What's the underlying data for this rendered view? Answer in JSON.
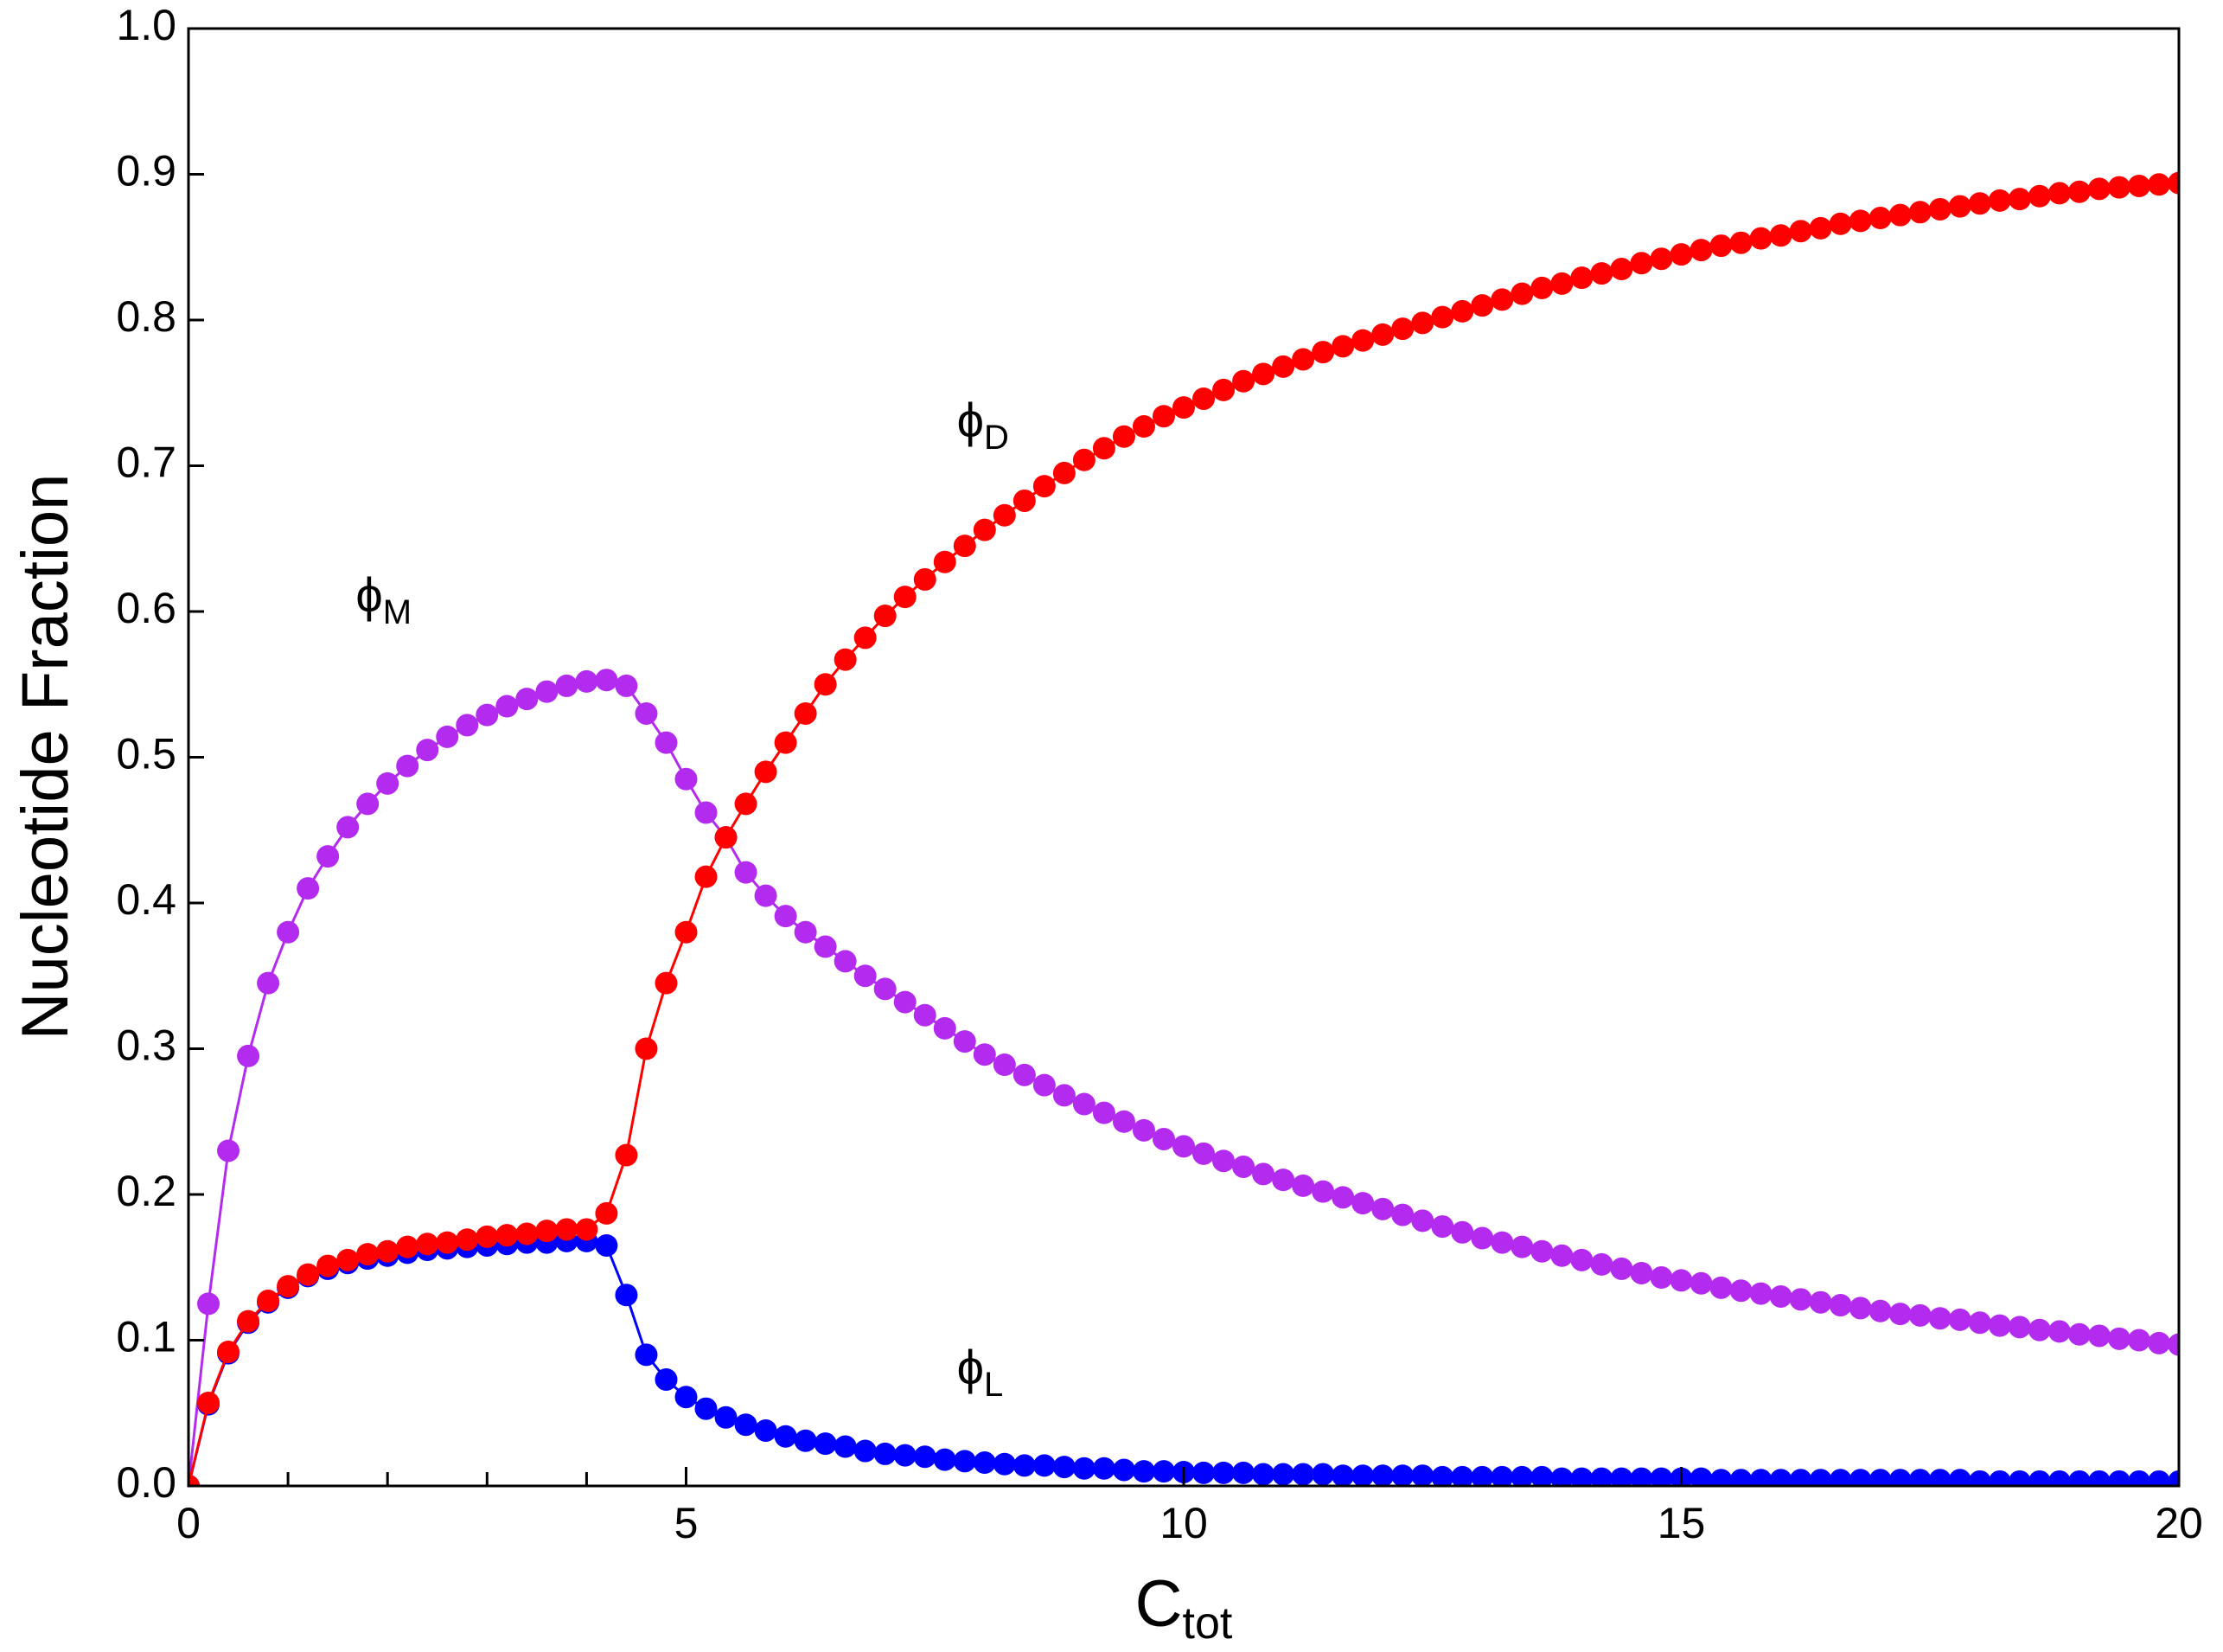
{
  "chart_data": {
    "type": "scatter",
    "ylabel": "Nucleotide Fraction",
    "xlabel": {
      "text": "C",
      "subscript": "tot"
    },
    "xlim": [
      0,
      20
    ],
    "ylim": [
      0,
      1
    ],
    "xticks": [
      0,
      5,
      10,
      15,
      20
    ],
    "xminorticks": [
      1,
      2,
      3,
      4
    ],
    "yticks": [
      {
        "value": 0,
        "label": "0.0"
      },
      0.1,
      0.2,
      0.3,
      0.4,
      0.5,
      0.6,
      0.7,
      0.8,
      0.9,
      {
        "value": 1,
        "label": "1.0"
      }
    ],
    "line": true,
    "x": [
      0,
      0.2,
      0.4,
      0.6,
      0.8,
      1,
      1.2,
      1.4,
      1.6,
      1.8,
      2,
      2.2,
      2.4,
      2.6,
      2.8,
      3,
      3.2,
      3.4,
      3.6,
      3.8,
      4,
      4.2,
      4.4,
      4.6,
      4.8,
      5,
      5.2,
      5.4,
      5.6,
      5.8,
      6,
      6.2,
      6.4,
      6.6,
      6.8,
      7,
      7.2,
      7.4,
      7.6,
      7.8,
      8,
      8.2,
      8.4,
      8.6,
      8.8,
      9,
      9.2,
      9.4,
      9.6,
      9.8,
      10,
      10.2,
      10.4,
      10.6,
      10.8,
      11,
      11.2,
      11.4,
      11.6,
      11.8,
      12,
      12.2,
      12.4,
      12.6,
      12.8,
      13,
      13.2,
      13.4,
      13.6,
      13.8,
      14,
      14.2,
      14.4,
      14.6,
      14.8,
      15,
      15.2,
      15.4,
      15.6,
      15.8,
      16,
      16.2,
      16.4,
      16.6,
      16.8,
      17,
      17.2,
      17.4,
      17.6,
      17.8,
      18,
      18.2,
      18.4,
      18.6,
      18.8,
      19,
      19.2,
      19.4,
      19.6,
      19.8,
      20
    ],
    "series": [
      {
        "color": "#b42bf0",
        "values": [
          0,
          0.125,
          0.23,
          0.295,
          0.345,
          0.38,
          0.41,
          0.432,
          0.452,
          0.468,
          0.482,
          0.494,
          0.505,
          0.514,
          0.522,
          0.529,
          0.535,
          0.54,
          0.545,
          0.549,
          0.552,
          0.553,
          0.549,
          0.53,
          0.51,
          0.485,
          0.462,
          0.445,
          0.421,
          0.405,
          0.391,
          0.38,
          0.37,
          0.36,
          0.35,
          0.341,
          0.332,
          0.323,
          0.314,
          0.305,
          0.296,
          0.289,
          0.282,
          0.275,
          0.268,
          0.262,
          0.256,
          0.25,
          0.244,
          0.238,
          0.233,
          0.228,
          0.223,
          0.219,
          0.214,
          0.21,
          0.206,
          0.202,
          0.198,
          0.194,
          0.19,
          0.186,
          0.182,
          0.178,
          0.174,
          0.17,
          0.167,
          0.164,
          0.161,
          0.158,
          0.155,
          0.152,
          0.149,
          0.146,
          0.143,
          0.141,
          0.139,
          0.136,
          0.134,
          0.132,
          0.13,
          0.128,
          0.126,
          0.124,
          0.122,
          0.12,
          0.118,
          0.117,
          0.115,
          0.114,
          0.112,
          0.11,
          0.109,
          0.107,
          0.106,
          0.104,
          0.103,
          0.101,
          0.1,
          0.098,
          0.097
        ]
      },
      {
        "color": "#0000ff",
        "values": [
          0,
          0.056,
          0.091,
          0.112,
          0.126,
          0.136,
          0.144,
          0.149,
          0.153,
          0.156,
          0.158,
          0.16,
          0.162,
          0.163,
          0.164,
          0.165,
          0.166,
          0.167,
          0.167,
          0.168,
          0.168,
          0.165,
          0.131,
          0.09,
          0.073,
          0.061,
          0.053,
          0.047,
          0.042,
          0.038,
          0.034,
          0.031,
          0.029,
          0.027,
          0.024,
          0.022,
          0.021,
          0.02,
          0.018,
          0.017,
          0.016,
          0.015,
          0.014,
          0.014,
          0.013,
          0.012,
          0.012,
          0.011,
          0.01,
          0.01,
          0.0095,
          0.009,
          0.009,
          0.009,
          0.008,
          0.008,
          0.008,
          0.008,
          0.007,
          0.007,
          0.007,
          0.007,
          0.007,
          0.006,
          0.006,
          0.006,
          0.006,
          0.006,
          0.006,
          0.005,
          0.005,
          0.005,
          0.005,
          0.005,
          0.005,
          0.005,
          0.005,
          0.004,
          0.004,
          0.004,
          0.004,
          0.004,
          0.004,
          0.004,
          0.004,
          0.004,
          0.004,
          0.004,
          0.004,
          0.004,
          0.003,
          0.003,
          0.003,
          0.003,
          0.003,
          0.003,
          0.003,
          0.003,
          0.003,
          0.003,
          0.003
        ]
      },
      {
        "color": "#ff0000",
        "values": [
          0,
          0.057,
          0.092,
          0.113,
          0.127,
          0.137,
          0.145,
          0.151,
          0.155,
          0.159,
          0.161,
          0.164,
          0.166,
          0.167,
          0.169,
          0.171,
          0.172,
          0.173,
          0.175,
          0.176,
          0.176,
          0.187,
          0.227,
          0.3,
          0.345,
          0.38,
          0.418,
          0.445,
          0.468,
          0.49,
          0.51,
          0.53,
          0.55,
          0.567,
          0.582,
          0.597,
          0.61,
          0.622,
          0.634,
          0.645,
          0.656,
          0.666,
          0.676,
          0.686,
          0.695,
          0.704,
          0.712,
          0.72,
          0.727,
          0.734,
          0.74,
          0.746,
          0.752,
          0.758,
          0.763,
          0.768,
          0.773,
          0.778,
          0.782,
          0.786,
          0.79,
          0.794,
          0.798,
          0.802,
          0.806,
          0.81,
          0.814,
          0.818,
          0.822,
          0.825,
          0.829,
          0.832,
          0.835,
          0.839,
          0.842,
          0.845,
          0.848,
          0.851,
          0.853,
          0.856,
          0.858,
          0.861,
          0.863,
          0.866,
          0.868,
          0.87,
          0.872,
          0.874,
          0.876,
          0.878,
          0.88,
          0.882,
          0.883,
          0.885,
          0.887,
          0.888,
          0.89,
          0.891,
          0.892,
          0.893,
          0.894
        ]
      }
    ],
    "annotations": [
      {
        "text": "ϕ",
        "subscript": "M"
      },
      {
        "text": "ϕ",
        "subscript": "L"
      },
      {
        "text": "ϕ",
        "subscript": "D"
      }
    ]
  }
}
